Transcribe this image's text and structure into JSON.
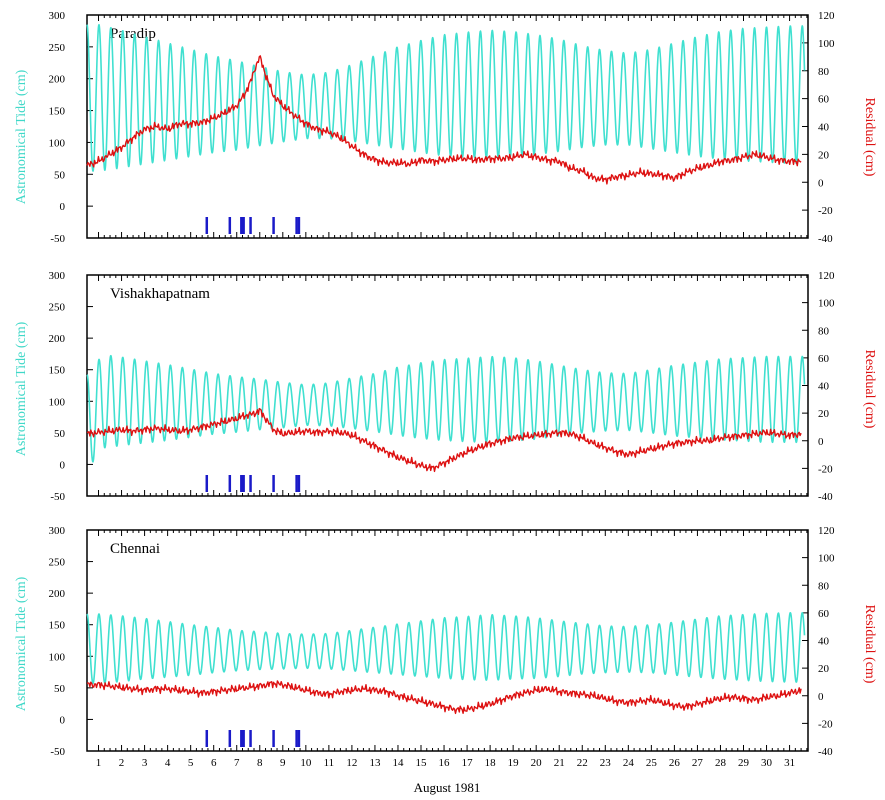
{
  "xlabel": "August 1981",
  "x_ticks": [
    "1",
    "2",
    "3",
    "4",
    "5",
    "6",
    "7",
    "8",
    "9",
    "10",
    "11",
    "12",
    "13",
    "14",
    "15",
    "16",
    "17",
    "18",
    "19",
    "20",
    "21",
    "22",
    "23",
    "24",
    "25",
    "26",
    "27",
    "28",
    "29",
    "30",
    "31"
  ],
  "colors": {
    "tide": "#40e0d0",
    "residual": "#dd1111",
    "markers": "#1a1ac8",
    "left_axis_label": "#40d8c8",
    "right_axis_label": "#dd1111"
  },
  "chart_data": [
    {
      "type": "line",
      "station": "Paradip",
      "ylabel_left": "Astronomical Tide (cm)",
      "ylabel_right": "Residual (cm)",
      "ylim_left": [
        -50,
        300
      ],
      "ylim_right": [
        -40,
        120
      ],
      "yticks_left": [
        "-50",
        "0",
        "50",
        "100",
        "150",
        "200",
        "250",
        "300"
      ],
      "yticks_right": [
        "-40",
        "-20",
        "0",
        "20",
        "40",
        "60",
        "80",
        "100",
        "120"
      ],
      "series": [
        {
          "axis": "left",
          "tide_mean": [
            170,
            168,
            166,
            164,
            162,
            160,
            158,
            157,
            156,
            156,
            158,
            162,
            166,
            170,
            172,
            174,
            175,
            176,
            176,
            175,
            174,
            172,
            170,
            168,
            168,
            170,
            172,
            174,
            175,
            175,
            175
          ],
          "tide_amplitude": [
            115,
            108,
            100,
            92,
            84,
            76,
            70,
            62,
            55,
            50,
            52,
            60,
            70,
            80,
            88,
            95,
            98,
            100,
            98,
            94,
            88,
            80,
            74,
            72,
            78,
            86,
            94,
            100,
            104,
            106,
            108
          ]
        },
        {
          "axis": "right",
          "day": [
            0.5,
            1,
            1.5,
            2,
            2.5,
            3,
            3.5,
            4,
            4.5,
            5,
            5.5,
            6,
            6.5,
            7,
            7.3,
            7.6,
            7.8,
            8,
            8.3,
            8.6,
            9,
            9.5,
            10,
            10.5,
            11,
            11.5,
            12,
            12.5,
            13,
            13.5,
            14,
            14.5,
            15,
            15.5,
            16,
            16.5,
            17,
            17.5,
            18,
            18.5,
            19,
            19.5,
            20,
            20.5,
            21,
            21.5,
            22,
            22.5,
            23,
            23.5,
            24,
            24.5,
            25,
            25.5,
            26,
            26.5,
            27,
            27.5,
            28,
            28.5,
            29,
            29.5,
            30,
            30.5,
            31,
            31.5
          ],
          "values": [
            12,
            15,
            20,
            25,
            32,
            38,
            40,
            38,
            42,
            42,
            43,
            46,
            50,
            55,
            62,
            72,
            82,
            90,
            75,
            62,
            55,
            48,
            42,
            38,
            36,
            32,
            26,
            20,
            16,
            14,
            14,
            13,
            16,
            15,
            16,
            17,
            17,
            16,
            17,
            17,
            18,
            20,
            18,
            16,
            15,
            10,
            8,
            3,
            2,
            4,
            5,
            7,
            6,
            5,
            3,
            7,
            10,
            12,
            15,
            16,
            18,
            20,
            18,
            16,
            15,
            15
          ]
        }
      ],
      "markers_day": [
        5.7,
        6.7,
        7.2,
        7.3,
        7.6,
        8.6,
        9.6,
        9.7
      ]
    },
    {
      "type": "line",
      "station": "Vishakhapatnam",
      "ylabel_left": "Astronomical Tide (cm)",
      "ylabel_right": "Residual (cm)",
      "ylim_left": [
        -50,
        300
      ],
      "ylim_right": [
        -40,
        120
      ],
      "yticks_left": [
        "-50",
        "0",
        "50",
        "100",
        "150",
        "200",
        "250",
        "300"
      ],
      "yticks_right": [
        "-40",
        "-20",
        "0",
        "20",
        "40",
        "60",
        "80",
        "100",
        "120"
      ],
      "series": [
        {
          "axis": "left",
          "tide_mean": [
            100,
            100,
            99,
            98,
            97,
            96,
            95,
            95,
            94,
            94,
            95,
            97,
            98,
            100,
            101,
            102,
            102,
            103,
            103,
            102,
            101,
            100,
            99,
            99,
            100,
            101,
            102,
            103,
            103,
            103,
            103
          ],
          "tide_amplitude": [
            75,
            70,
            65,
            60,
            54,
            48,
            44,
            40,
            36,
            32,
            34,
            40,
            46,
            54,
            60,
            64,
            66,
            68,
            66,
            62,
            56,
            50,
            46,
            45,
            50,
            56,
            60,
            64,
            66,
            68,
            68
          ],
          "tide_lead_dip": -55
        },
        {
          "axis": "right",
          "day": [
            0.5,
            1,
            1.5,
            2,
            2.5,
            3,
            3.5,
            4,
            4.5,
            5,
            5.5,
            6,
            6.5,
            7,
            7.3,
            7.6,
            7.8,
            8,
            8.3,
            8.6,
            9,
            9.5,
            10,
            10.5,
            11,
            11.5,
            12,
            12.5,
            13,
            13.5,
            14,
            14.5,
            15,
            15.5,
            16,
            16.5,
            17,
            17.5,
            18,
            18.5,
            19,
            19.5,
            20,
            20.5,
            21,
            21.5,
            22,
            22.5,
            23,
            23.5,
            24,
            24.5,
            25,
            25.5,
            26,
            26.5,
            27,
            27.5,
            28,
            28.5,
            29,
            29.5,
            30,
            30.5,
            31,
            31.5
          ],
          "values": [
            5,
            6,
            7,
            8,
            7,
            8,
            9,
            8,
            7,
            8,
            10,
            12,
            14,
            16,
            18,
            19,
            20,
            22,
            15,
            8,
            5,
            6,
            7,
            6,
            7,
            6,
            4,
            0,
            -4,
            -8,
            -12,
            -15,
            -18,
            -20,
            -16,
            -12,
            -8,
            -5,
            -2,
            0,
            2,
            3,
            4,
            5,
            6,
            5,
            2,
            -2,
            -5,
            -8,
            -10,
            -8,
            -6,
            -4,
            -2,
            -1,
            0,
            0,
            2,
            3,
            4,
            5,
            6,
            5,
            4,
            5
          ]
        }
      ],
      "markers_day": [
        5.7,
        6.7,
        7.2,
        7.3,
        7.6,
        8.6,
        9.6,
        9.7
      ]
    },
    {
      "type": "line",
      "station": "Chennai",
      "ylabel_left": "Astronomical Tide (cm)",
      "ylabel_right": "Residual (cm)",
      "ylim_left": [
        -50,
        300
      ],
      "ylim_right": [
        -40,
        120
      ],
      "yticks_left": [
        "-50",
        "0",
        "50",
        "100",
        "150",
        "200",
        "250",
        "300"
      ],
      "yticks_right": [
        "-40",
        "-20",
        "0",
        "20",
        "40",
        "60",
        "80",
        "100",
        "120"
      ],
      "series": [
        {
          "axis": "left",
          "tide_mean": [
            112,
            112,
            112,
            111,
            110,
            110,
            109,
            109,
            108,
            108,
            108,
            109,
            110,
            111,
            112,
            113,
            113,
            114,
            114,
            113,
            112,
            112,
            111,
            111,
            112,
            112,
            113,
            114,
            114,
            114,
            114
          ],
          "tide_amplitude": [
            55,
            52,
            48,
            44,
            40,
            36,
            32,
            30,
            28,
            27,
            28,
            32,
            36,
            40,
            44,
            48,
            50,
            52,
            50,
            48,
            44,
            40,
            37,
            36,
            38,
            42,
            46,
            50,
            52,
            54,
            55
          ]
        },
        {
          "axis": "right",
          "day": [
            0.5,
            1,
            1.5,
            2,
            2.5,
            3,
            3.5,
            4,
            4.5,
            5,
            5.5,
            6,
            6.5,
            7,
            7.5,
            8,
            8.3,
            8.6,
            9,
            9.5,
            10,
            10.5,
            11,
            11.5,
            12,
            12.5,
            13,
            13.5,
            14,
            14.5,
            15,
            15.5,
            16,
            16.5,
            17,
            17.5,
            18,
            18.5,
            19,
            19.5,
            20,
            20.5,
            21,
            21.5,
            22,
            22.5,
            23,
            23.5,
            24,
            24.5,
            25,
            25.5,
            26,
            26.5,
            27,
            27.5,
            28,
            28.5,
            29,
            29.5,
            30,
            30.5,
            31,
            31.5
          ],
          "values": [
            8,
            8,
            7,
            6,
            5,
            4,
            5,
            5,
            4,
            3,
            2,
            3,
            4,
            5,
            6,
            7,
            8,
            9,
            8,
            6,
            4,
            2,
            1,
            3,
            4,
            5,
            4,
            3,
            0,
            -2,
            -4,
            -6,
            -8,
            -10,
            -10,
            -8,
            -6,
            -3,
            0,
            2,
            4,
            5,
            3,
            2,
            1,
            0,
            -2,
            -4,
            -5,
            -4,
            -3,
            -5,
            -7,
            -8,
            -6,
            -4,
            -2,
            -1,
            -2,
            -3,
            -1,
            0,
            2,
            4
          ]
        }
      ],
      "markers_day": [
        5.7,
        6.7,
        7.2,
        7.3,
        7.6,
        8.6,
        9.6,
        9.7
      ]
    }
  ]
}
